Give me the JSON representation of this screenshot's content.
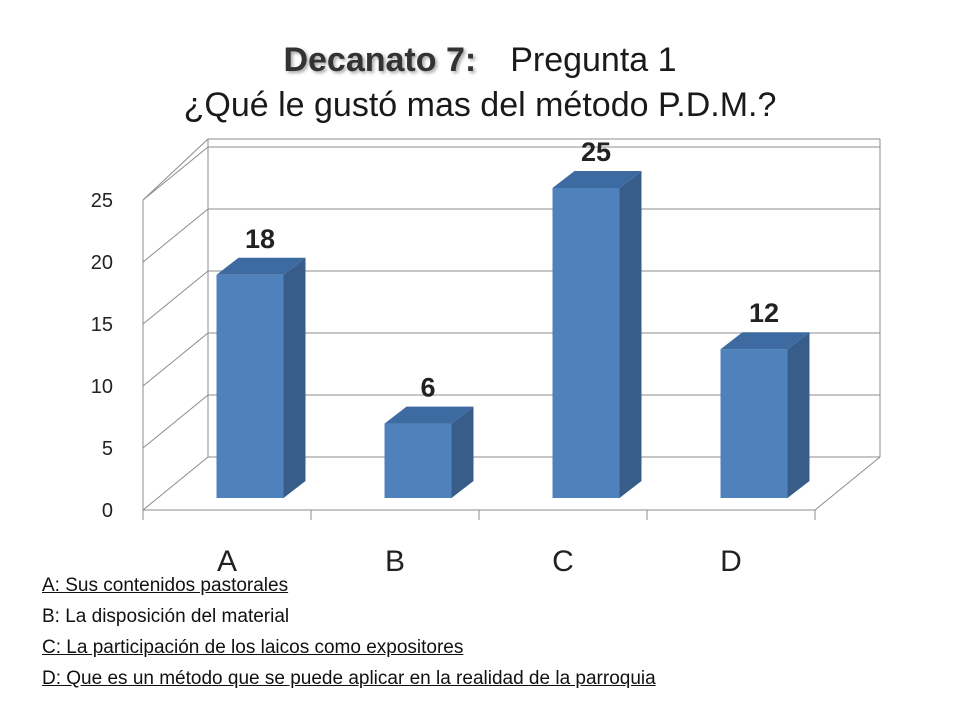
{
  "title": {
    "bold": "Decanato 7:",
    "rest": "Pregunta 1",
    "question": "¿Qué le gustó mas del método P.D.M.?"
  },
  "chart_data": {
    "type": "bar",
    "categories": [
      "A",
      "B",
      "C",
      "D"
    ],
    "values": [
      18,
      6,
      25,
      12
    ],
    "ylim": [
      0,
      25
    ],
    "yticks": [
      0,
      5,
      10,
      15,
      20,
      25
    ],
    "data_labels": true,
    "grid": true,
    "bar_color": "#4f81bd",
    "bar_side_color": "#385d8a",
    "bar_top_color": "#3e6aa2"
  },
  "legend": [
    {
      "text": "A: Sus contenidos pastorales",
      "underline": true
    },
    {
      "text": "B: La disposición del material",
      "underline": false
    },
    {
      "text": "C: La participación de los laicos como expositores",
      "underline": true
    },
    {
      "text": "D: Que es un método que se puede aplicar en la realidad de la parroquia",
      "underline": true
    }
  ]
}
